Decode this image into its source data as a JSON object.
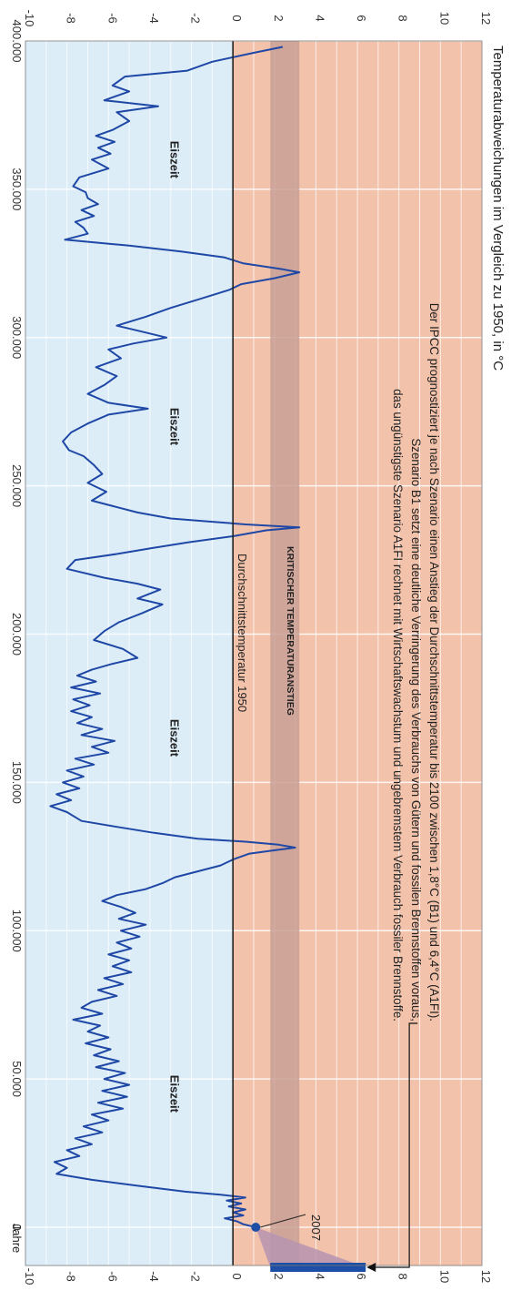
{
  "chart_data": {
    "type": "line",
    "title": "Temperaturabweichungen im Vergleich zu 1950, in °C",
    "xlabel": "Jahre",
    "x_direction": "decreasing (past at top, present at bottom)",
    "xlim": [
      400000,
      -10000
    ],
    "ylim": [
      -10,
      12
    ],
    "x_ticks": [
      "400.000",
      "350.000",
      "300.000",
      "250.000",
      "200.000",
      "150.000",
      "100.000",
      "50.000",
      "0"
    ],
    "y_ticks": [
      "-10",
      "-8",
      "-6",
      "-4",
      "-2",
      "0",
      "2",
      "4",
      "6",
      "8",
      "10",
      "12"
    ],
    "colors": {
      "warm_background": "#f3c2ab",
      "cold_background": "#dcedf8",
      "line": "#1f48a6",
      "critical_band": "#c9a095",
      "projection_wedge": "#b694b0",
      "projection_bar": "#1d4fa6"
    },
    "critical_band": {
      "label": "Kritischer Temperaturanstieg",
      "range": [
        1.8,
        3.2
      ]
    },
    "baseline_label": "Durchschnittstemperatur 1950",
    "eiszeit_labels": [
      {
        "text": "Eiszeit",
        "x": 360000,
        "y": -3
      },
      {
        "text": "Eiszeit",
        "x": 270000,
        "y": -3
      },
      {
        "text": "Eiszeit",
        "x": 165000,
        "y": -3
      },
      {
        "text": "Eiszeit",
        "x": 45000,
        "y": -3
      }
    ],
    "annotation": {
      "lines": [
        "Der IPCC prognostiziert je nach Szenario einen Anstieg der Durchschnittstemperatur bis 2100 zwischen 1,8°C (B1) und  6,4°C (A1FI).",
        "Szenario B1 setzt eine deutliche Verringerung des Verbrauchs von Gütern und fossilen Brennstoffen voraus,",
        "das ungünstigste Szenario A1FI rechnet mit Wirtschaftswachstum und ungebremstem Verbrauch fossiler Brennstoffe."
      ]
    },
    "marker_2007": {
      "label": "2007",
      "x": 0,
      "y": 1.1
    },
    "projection": {
      "low": 1.8,
      "high": 6.4
    },
    "series": [
      {
        "points": [
          [
            398000,
            2.4
          ],
          [
            396000,
            1.0
          ],
          [
            393000,
            -1.0
          ],
          [
            390000,
            -2.2
          ],
          [
            388000,
            -5.2
          ],
          [
            385000,
            -5.8
          ],
          [
            383000,
            -5.0
          ],
          [
            380000,
            -6.2
          ],
          [
            378000,
            -3.6
          ],
          [
            376000,
            -5.6
          ],
          [
            373000,
            -5.0
          ],
          [
            370000,
            -5.8
          ],
          [
            368000,
            -6.6
          ],
          [
            366000,
            -5.7
          ],
          [
            364000,
            -6.5
          ],
          [
            362000,
            -5.9
          ],
          [
            360000,
            -6.8
          ],
          [
            357000,
            -6.0
          ],
          [
            354000,
            -7.4
          ],
          [
            351000,
            -7.7
          ],
          [
            349000,
            -7.1
          ],
          [
            347000,
            -7.0
          ],
          [
            345000,
            -6.5
          ],
          [
            343000,
            -7.3
          ],
          [
            341000,
            -6.7
          ],
          [
            339000,
            -7.6
          ],
          [
            337000,
            -7.2
          ],
          [
            335000,
            -7.0
          ],
          [
            333000,
            -8.1
          ],
          [
            331000,
            -5.0
          ],
          [
            329000,
            -2.5
          ],
          [
            327000,
            -0.4
          ],
          [
            325000,
            0.5
          ],
          [
            323000,
            2.4
          ],
          [
            322000,
            3.2
          ],
          [
            320000,
            2.0
          ],
          [
            318000,
            0.4
          ],
          [
            316000,
            -0.2
          ],
          [
            313000,
            -1.6
          ],
          [
            310000,
            -3.0
          ],
          [
            307000,
            -4.2
          ],
          [
            304000,
            -5.6
          ],
          [
            302000,
            -4.4
          ],
          [
            300000,
            -3.2
          ],
          [
            298000,
            -4.8
          ],
          [
            296000,
            -6.0
          ],
          [
            293000,
            -5.4
          ],
          [
            290000,
            -6.6
          ],
          [
            287000,
            -5.6
          ],
          [
            284000,
            -6.2
          ],
          [
            281000,
            -7.0
          ],
          [
            278000,
            -6.0
          ],
          [
            276000,
            -4.1
          ],
          [
            274000,
            -6.0
          ],
          [
            271000,
            -7.0
          ],
          [
            268000,
            -7.8
          ],
          [
            265000,
            -8.2
          ],
          [
            262000,
            -7.9
          ],
          [
            260000,
            -7.2
          ],
          [
            257000,
            -6.7
          ],
          [
            254000,
            -6.3
          ],
          [
            251000,
            -7.0
          ],
          [
            248000,
            -6.1
          ],
          [
            245000,
            -6.8
          ],
          [
            243000,
            -5.7
          ],
          [
            241000,
            -4.6
          ],
          [
            239000,
            -3.0
          ],
          [
            238000,
            -1.2
          ],
          [
            237000,
            0.6
          ],
          [
            236000,
            3.2
          ],
          [
            235000,
            1.6
          ],
          [
            233000,
            0.0
          ],
          [
            231000,
            -2.1
          ],
          [
            229000,
            -3.9
          ],
          [
            227000,
            -5.6
          ],
          [
            225000,
            -7.6
          ],
          [
            222000,
            -8.0
          ],
          [
            219000,
            -6.2
          ],
          [
            217000,
            -4.6
          ],
          [
            215000,
            -3.5
          ],
          [
            212000,
            -4.6
          ],
          [
            210000,
            -3.4
          ],
          [
            207000,
            -4.4
          ],
          [
            204000,
            -5.5
          ],
          [
            201000,
            -6.2
          ],
          [
            198000,
            -6.7
          ],
          [
            195000,
            -5.3
          ],
          [
            192000,
            -4.6
          ],
          [
            190000,
            -5.8
          ],
          [
            188000,
            -6.8
          ],
          [
            186000,
            -7.5
          ],
          [
            184000,
            -6.6
          ],
          [
            182000,
            -7.8
          ],
          [
            180000,
            -6.4
          ],
          [
            178000,
            -7.7
          ],
          [
            176000,
            -6.9
          ],
          [
            174000,
            -7.8
          ],
          [
            172000,
            -6.8
          ],
          [
            170000,
            -7.5
          ],
          [
            168000,
            -6.3
          ],
          [
            166000,
            -7.3
          ],
          [
            164000,
            -5.7
          ],
          [
            162000,
            -6.8
          ],
          [
            160000,
            -6.0
          ],
          [
            158000,
            -7.6
          ],
          [
            156000,
            -6.7
          ],
          [
            154000,
            -8.0
          ],
          [
            152000,
            -7.2
          ],
          [
            150000,
            -8.2
          ],
          [
            148000,
            -7.4
          ],
          [
            146000,
            -8.5
          ],
          [
            144000,
            -7.8
          ],
          [
            142000,
            -8.8
          ],
          [
            140000,
            -8.0
          ],
          [
            137000,
            -7.3
          ],
          [
            135000,
            -5.6
          ],
          [
            133000,
            -3.8
          ],
          [
            131000,
            -1.7
          ],
          [
            130000,
            0.6
          ],
          [
            129000,
            2.2
          ],
          [
            128000,
            3.0
          ],
          [
            127000,
            1.9
          ],
          [
            126000,
            0.8
          ],
          [
            124000,
            0.0
          ],
          [
            122000,
            -0.6
          ],
          [
            120000,
            -1.7
          ],
          [
            118000,
            -2.8
          ],
          [
            116000,
            -3.4
          ],
          [
            114000,
            -4.2
          ],
          [
            112000,
            -5.6
          ],
          [
            110000,
            -6.3
          ],
          [
            108000,
            -5.4
          ],
          [
            106000,
            -4.7
          ],
          [
            104000,
            -5.5
          ],
          [
            102000,
            -4.2
          ],
          [
            100000,
            -5.4
          ],
          [
            98000,
            -4.5
          ],
          [
            96000,
            -5.6
          ],
          [
            94000,
            -4.9
          ],
          [
            92000,
            -6.0
          ],
          [
            90000,
            -5.0
          ],
          [
            88000,
            -5.8
          ],
          [
            86000,
            -4.9
          ],
          [
            84000,
            -6.2
          ],
          [
            82000,
            -5.3
          ],
          [
            80000,
            -6.5
          ],
          [
            78000,
            -5.6
          ],
          [
            76000,
            -6.8
          ],
          [
            74000,
            -7.3
          ],
          [
            72000,
            -6.3
          ],
          [
            70000,
            -7.7
          ],
          [
            68000,
            -6.4
          ],
          [
            66000,
            -7.0
          ],
          [
            64000,
            -6.0
          ],
          [
            62000,
            -7.1
          ],
          [
            60000,
            -5.9
          ],
          [
            58000,
            -6.7
          ],
          [
            56000,
            -5.5
          ],
          [
            54000,
            -6.6
          ],
          [
            52000,
            -5.2
          ],
          [
            50000,
            -6.2
          ],
          [
            48000,
            -5.0
          ],
          [
            46000,
            -6.3
          ],
          [
            44000,
            -5.1
          ],
          [
            42000,
            -6.5
          ],
          [
            40000,
            -5.3
          ],
          [
            38000,
            -6.8
          ],
          [
            36000,
            -6.0
          ],
          [
            34000,
            -7.2
          ],
          [
            32000,
            -6.3
          ],
          [
            30000,
            -7.6
          ],
          [
            28000,
            -6.8
          ],
          [
            26000,
            -8.0
          ],
          [
            24000,
            -7.4
          ],
          [
            22000,
            -8.6
          ],
          [
            20000,
            -8.0
          ],
          [
            18000,
            -8.5
          ],
          [
            16000,
            -6.8
          ],
          [
            14000,
            -4.6
          ],
          [
            12000,
            -2.3
          ],
          [
            11000,
            -0.6
          ],
          [
            10000,
            0.6
          ],
          [
            9000,
            -0.3
          ],
          [
            8000,
            0.4
          ],
          [
            7000,
            -0.2
          ],
          [
            6000,
            0.6
          ],
          [
            5000,
            0.0
          ],
          [
            4000,
            0.5
          ],
          [
            3000,
            -0.4
          ],
          [
            2000,
            0.2
          ],
          [
            1000,
            0.5
          ],
          [
            0,
            1.1
          ]
        ]
      }
    ]
  }
}
